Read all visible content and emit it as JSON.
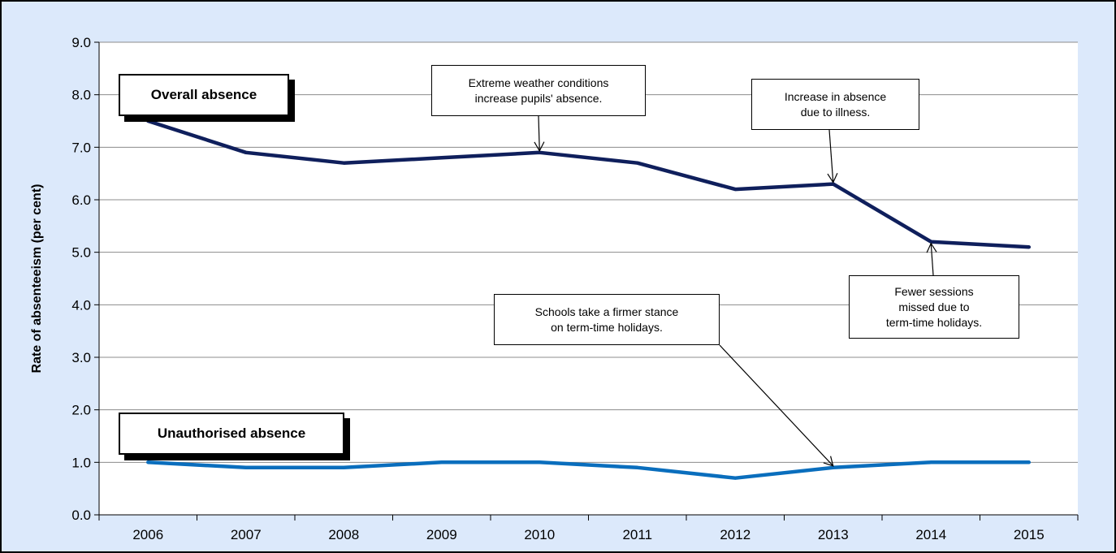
{
  "chart_data": {
    "type": "line",
    "ylabel": "Rate of absenteeism (per cent)",
    "xlabel": "",
    "categories": [
      "2006",
      "2007",
      "2008",
      "2009",
      "2010",
      "2011",
      "2012",
      "2013",
      "2014",
      "2015"
    ],
    "ylim": [
      0,
      9
    ],
    "yticks": [
      "0.0",
      "1.0",
      "2.0",
      "3.0",
      "4.0",
      "5.0",
      "6.0",
      "7.0",
      "8.0",
      "9.0"
    ],
    "grid": true,
    "series": [
      {
        "name": "Overall absence",
        "color": "#0f1f5c",
        "values": [
          7.5,
          6.9,
          6.7,
          6.8,
          6.9,
          6.7,
          6.2,
          6.3,
          5.2,
          5.1
        ]
      },
      {
        "name": "Unauthorised absence",
        "color": "#0a6ebd",
        "values": [
          1.0,
          0.9,
          0.9,
          1.0,
          1.0,
          0.9,
          0.7,
          0.9,
          1.0,
          1.0
        ]
      }
    ],
    "annotations": [
      {
        "lines": [
          "Extreme weather conditions",
          "increase pupils' absence."
        ],
        "target": {
          "x": "2010",
          "y": 6.9
        }
      },
      {
        "lines": [
          "Increase in absence",
          "due to illness."
        ],
        "target": {
          "x": "2013",
          "y": 6.3
        }
      },
      {
        "lines": [
          "Fewer sessions",
          "missed due to",
          "term-time holidays."
        ],
        "target": {
          "x": "2014",
          "y": 5.2
        }
      },
      {
        "lines": [
          "Schools take a firmer stance",
          "on term-time holidays."
        ],
        "target": {
          "x": "2013",
          "y": 0.9
        }
      }
    ]
  }
}
